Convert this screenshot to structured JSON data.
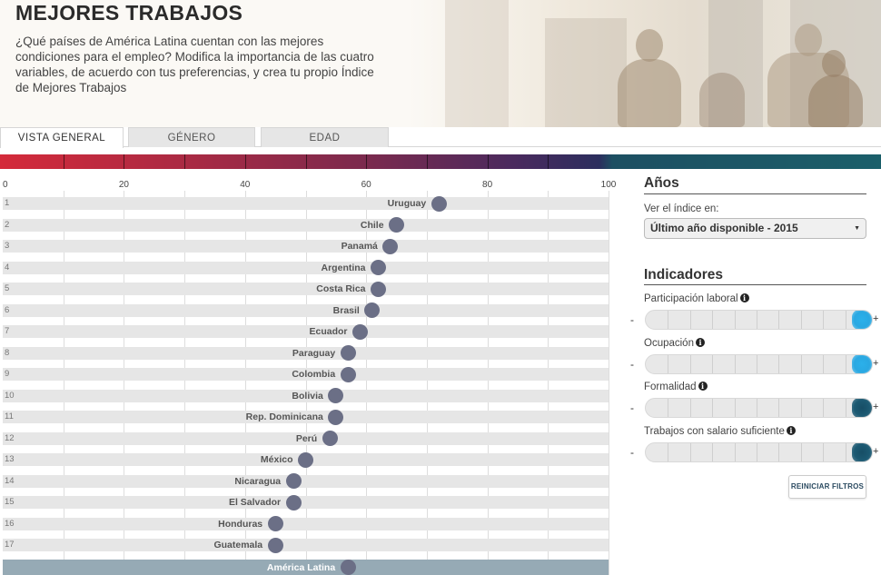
{
  "header": {
    "title": "MEJORES TRABAJOS",
    "subtitle": "¿Qué países de América Latina cuentan con las mejores condiciones para el empleo? Modifica la importancia de las cuatro variables, de acuerdo con tus preferencias, y crea tu propio Índice de Mejores Trabajos"
  },
  "tabs": [
    {
      "label": "VISTA GENERAL",
      "active": true
    },
    {
      "label": "GÉNERO",
      "active": false
    },
    {
      "label": "EDAD",
      "active": false
    }
  ],
  "chart_data": {
    "type": "scatter",
    "xlim": [
      0,
      100
    ],
    "x_ticks": [
      "0",
      "20",
      "40",
      "60",
      "80",
      "100"
    ],
    "rows": [
      {
        "rank": "1",
        "country": "Uruguay",
        "value": 72
      },
      {
        "rank": "2",
        "country": "Chile",
        "value": 65
      },
      {
        "rank": "3",
        "country": "Panamá",
        "value": 64
      },
      {
        "rank": "4",
        "country": "Argentina",
        "value": 62
      },
      {
        "rank": "5",
        "country": "Costa Rica",
        "value": 62
      },
      {
        "rank": "6",
        "country": "Brasil",
        "value": 61
      },
      {
        "rank": "7",
        "country": "Ecuador",
        "value": 59
      },
      {
        "rank": "8",
        "country": "Paraguay",
        "value": 57
      },
      {
        "rank": "9",
        "country": "Colombia",
        "value": 57
      },
      {
        "rank": "10",
        "country": "Bolivia",
        "value": 55
      },
      {
        "rank": "11",
        "country": "Rep. Dominicana",
        "value": 55
      },
      {
        "rank": "12",
        "country": "Perú",
        "value": 54
      },
      {
        "rank": "13",
        "country": "México",
        "value": 50
      },
      {
        "rank": "14",
        "country": "Nicaragua",
        "value": 48
      },
      {
        "rank": "15",
        "country": "El Salvador",
        "value": 48
      },
      {
        "rank": "16",
        "country": "Honduras",
        "value": 45
      },
      {
        "rank": "17",
        "country": "Guatemala",
        "value": 45
      }
    ],
    "average": {
      "country": "América Latina",
      "value": 57
    },
    "dot_color": "#6b6f86",
    "average_row_color": "#96aab5"
  },
  "color_scale": {
    "start": "#d42a3a",
    "end": "#1b5f6a"
  },
  "panel": {
    "years": {
      "title": "Años",
      "label": "Ver el índice en:",
      "selected": "Último año disponible - 2015"
    },
    "indicators": {
      "title": "Indicadores",
      "items": [
        {
          "label": "Participación laboral",
          "level": 1.0,
          "knob_color": "#2aa8e2"
        },
        {
          "label": "Ocupación",
          "level": 1.0,
          "knob_color": "#2aa8e2"
        },
        {
          "label": "Formalidad",
          "level": 1.0,
          "knob_color": "#1c5a73"
        },
        {
          "label": "Trabajos con salario suficiente",
          "level": 1.0,
          "knob_color": "#1c5a73"
        }
      ],
      "minus": "-",
      "plus": "+"
    },
    "reset_label": "REINICIAR FILTROS"
  }
}
